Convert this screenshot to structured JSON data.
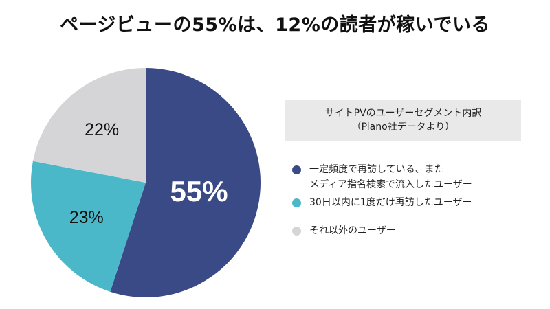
{
  "title": "ページビューの55%は、12%の読者が稼いでいる",
  "legend": {
    "header_line1": "サイトPVのユーザーセグメント内訳",
    "header_line2": "（Piano社データより）",
    "items": [
      {
        "lines": [
          "一定頻度で再訪している、また",
          "メディア指名検索で流入したユーザー"
        ],
        "color": "#3a4a86"
      },
      {
        "lines": [
          "30日以内に1度だけ再訪したユーザー"
        ],
        "color": "#4ab8c8"
      },
      {
        "lines": [
          "それ以外のユーザー"
        ],
        "color": "#d5d5d7"
      }
    ]
  },
  "chart_data": {
    "type": "pie",
    "title": "ページビューの55%は、12%の読者が稼いでいる",
    "slices": [
      {
        "name": "一定頻度で再訪している、またメディア指名検索で流入したユーザー",
        "value": 55,
        "label": "55%",
        "color": "#3a4a86",
        "label_color": "#ffffff"
      },
      {
        "name": "30日以内に1度だけ再訪したユーザー",
        "value": 23,
        "label": "23%",
        "color": "#4ab8c8",
        "label_color": "#111111"
      },
      {
        "name": "それ以外のユーザー",
        "value": 22,
        "label": "22%",
        "color": "#d5d5d7",
        "label_color": "#111111"
      }
    ],
    "start": "12 o'clock",
    "direction": "clockwise",
    "legend_position": "right"
  }
}
